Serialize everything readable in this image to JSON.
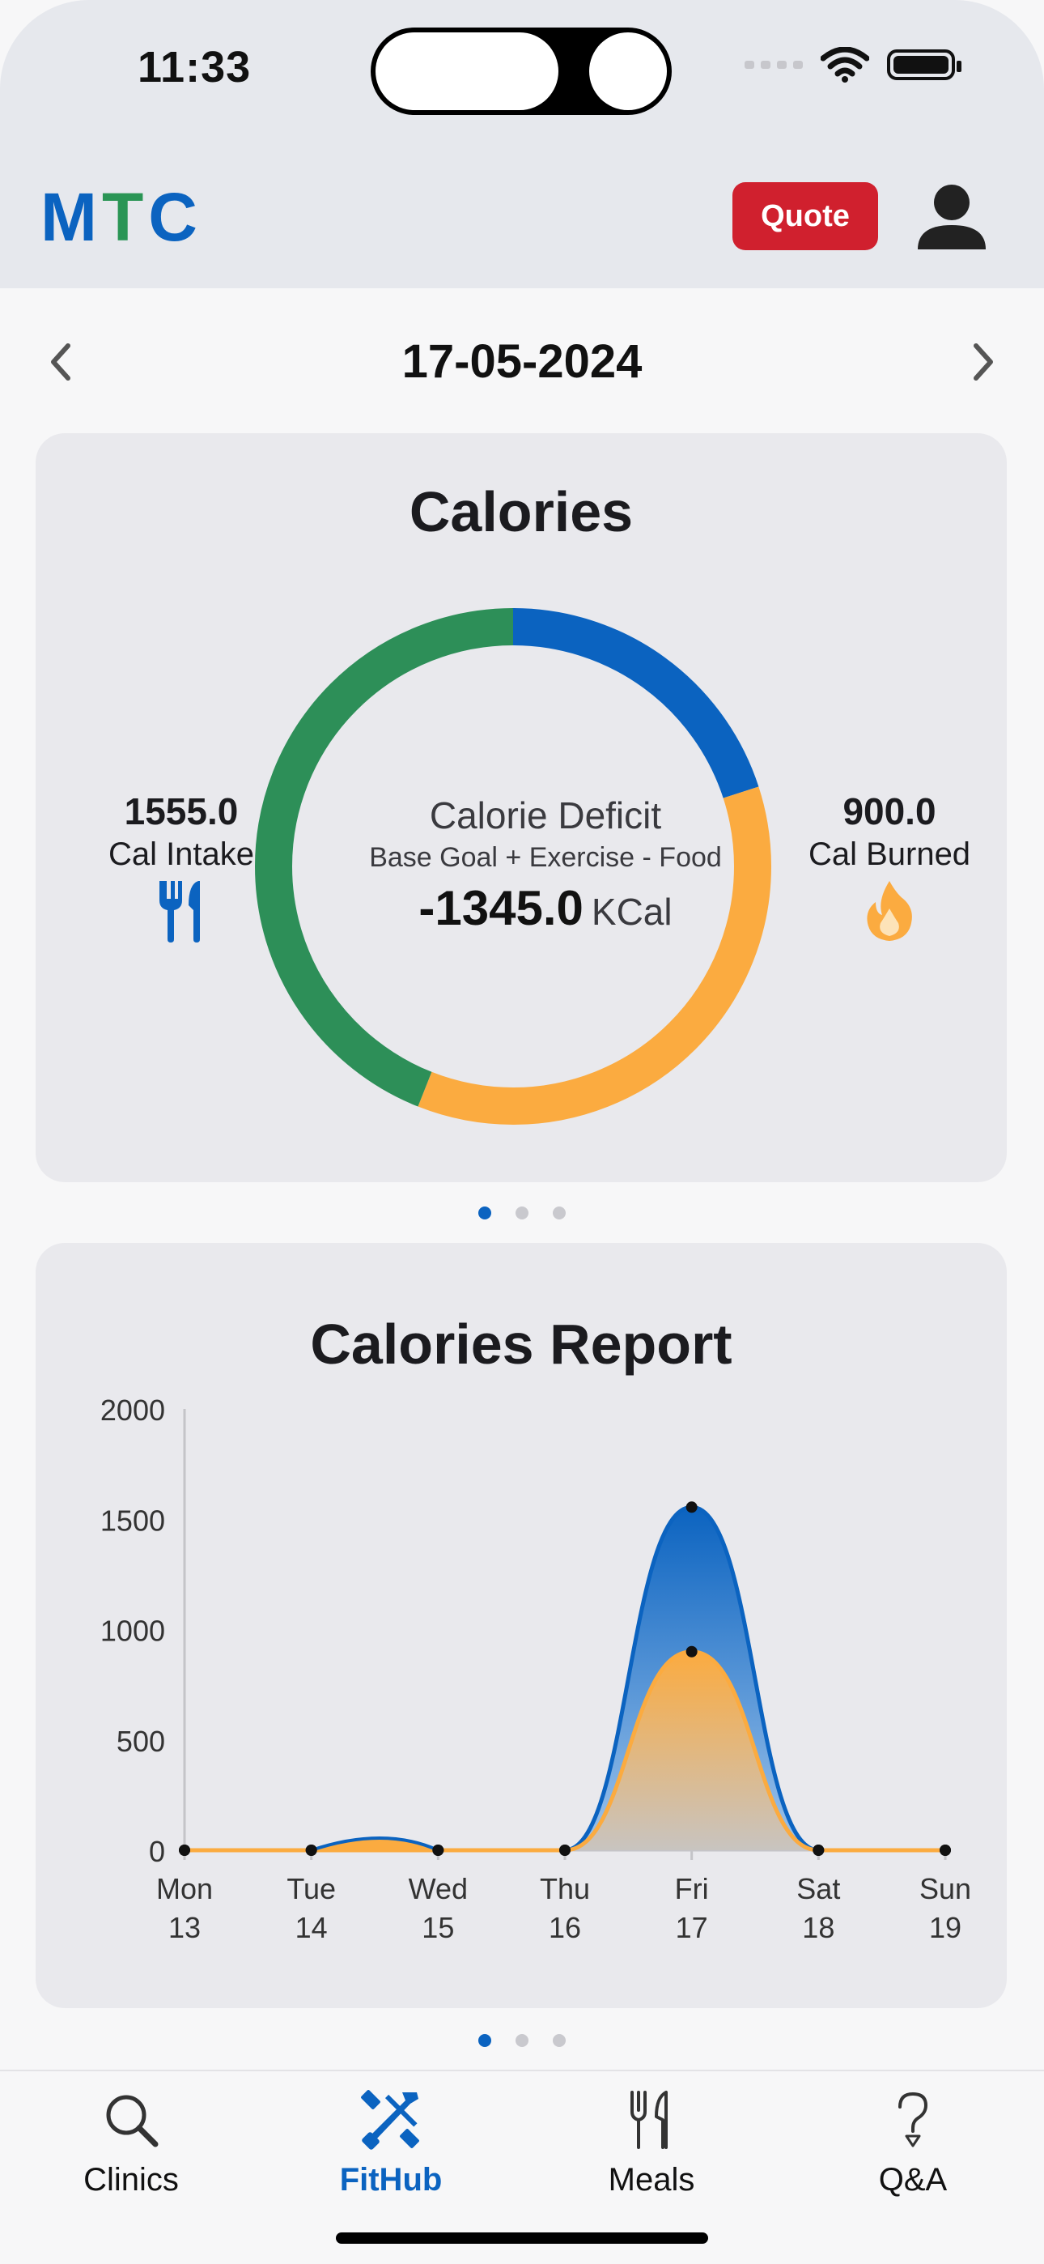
{
  "status": {
    "time": "11:33"
  },
  "header": {
    "logo_letters": [
      {
        "char": "M",
        "color": "#0b63c0"
      },
      {
        "char": "T",
        "color": "#2a9555"
      },
      {
        "char": "C",
        "color": "#0b63c0"
      }
    ],
    "quote_label": "Quote"
  },
  "date_nav": {
    "date": "17-05-2024"
  },
  "calories": {
    "title": "Calories",
    "intake_value": "1555.0",
    "intake_label": "Cal Intake",
    "burned_value": "900.0",
    "burned_label": "Cal Burned",
    "deficit_title": "Calorie Deficit",
    "deficit_formula": "Base Goal + Exercise - Food",
    "deficit_value": "-1345.0",
    "deficit_unit": "KCal",
    "ring_segments": [
      {
        "color": "#0b63c0",
        "fraction": 0.2
      },
      {
        "color": "#fbab40",
        "fraction": 0.36
      },
      {
        "color": "#2d8f58",
        "fraction": 0.44
      }
    ]
  },
  "pager1": {
    "count": 3,
    "active": 0
  },
  "report": {
    "title": "Calories Report"
  },
  "chart_data": {
    "type": "area",
    "title": "Calories Report",
    "categories": [
      "Mon\n13",
      "Tue\n14",
      "Wed\n15",
      "Thu\n16",
      "Fri\n17",
      "Sat\n18",
      "Sun\n19"
    ],
    "x_labels_top": [
      "Mon",
      "Tue",
      "Wed",
      "Thu",
      "Fri",
      "Sat",
      "Sun"
    ],
    "x_labels_bottom": [
      "13",
      "14",
      "15",
      "16",
      "17",
      "18",
      "19"
    ],
    "y_ticks": [
      0,
      500,
      1000,
      1500,
      2000
    ],
    "ylim": [
      0,
      2000
    ],
    "series": [
      {
        "values": [
          0,
          0,
          0,
          0,
          1555,
          0,
          0
        ],
        "color": "#0b63c0"
      },
      {
        "values": [
          0,
          0,
          0,
          0,
          900,
          0,
          0
        ],
        "color": "#fbab40"
      }
    ],
    "grid": false
  },
  "pager2": {
    "count": 3,
    "active": 0
  },
  "tabs": [
    {
      "label": "Clinics",
      "icon": "search-icon"
    },
    {
      "label": "FitHub",
      "icon": "fitness-tools-icon"
    },
    {
      "label": "Meals",
      "icon": "fork-knife-icon"
    },
    {
      "label": "Q&A",
      "icon": "question-icon"
    }
  ],
  "active_tab": 1
}
